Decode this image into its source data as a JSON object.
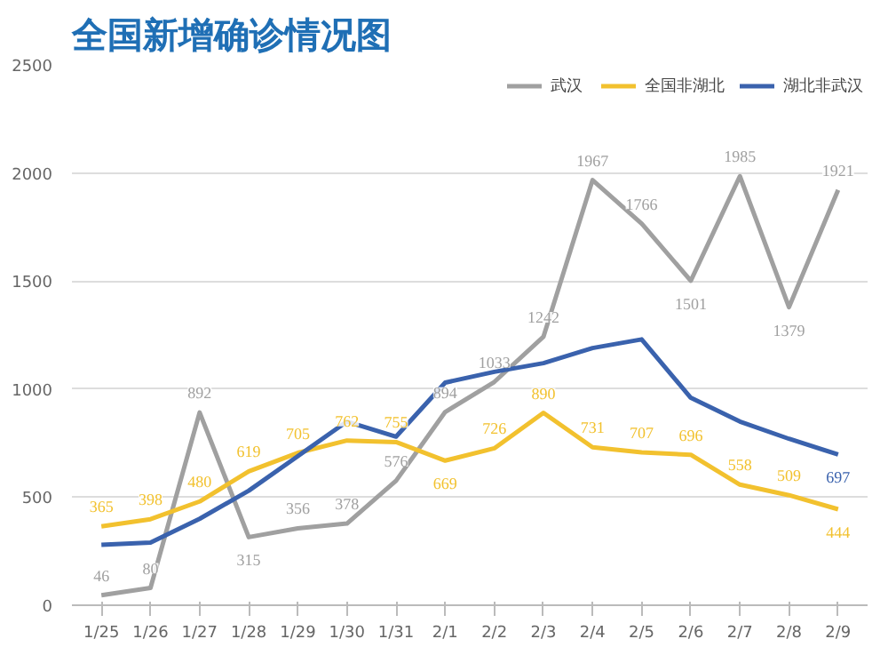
{
  "chart_data": {
    "type": "line",
    "title": "全国新增确诊情况图",
    "categories": [
      "1/25",
      "1/26",
      "1/27",
      "1/28",
      "1/29",
      "1/30",
      "1/31",
      "2/1",
      "2/2",
      "2/3",
      "2/4",
      "2/5",
      "2/6",
      "2/7",
      "2/8",
      "2/9"
    ],
    "series": [
      {
        "name": "武汉",
        "color": "#a0a0a0",
        "values": [
          46,
          80,
          892,
          315,
          356,
          378,
          576,
          894,
          1033,
          1242,
          1967,
          1766,
          1501,
          1985,
          1379,
          1921
        ],
        "value_labels": [
          "46",
          "80",
          "892",
          "315",
          "356",
          "378",
          "576",
          "894",
          "1033",
          "1242",
          "1967",
          "1766",
          "1501",
          "1985",
          "1379",
          "1921"
        ]
      },
      {
        "name": "全国非湖北",
        "color": "#f2c12e",
        "values": [
          365,
          398,
          480,
          619,
          705,
          762,
          755,
          669,
          726,
          890,
          731,
          707,
          696,
          558,
          509,
          444
        ],
        "value_labels": [
          "365",
          "398",
          "480",
          "619",
          "705",
          "762",
          "755",
          "669",
          "726",
          "890",
          "731",
          "707",
          "696",
          "558",
          "509",
          "444"
        ]
      },
      {
        "name": "湖北非武汉",
        "color": "#3a62ad",
        "values": [
          280,
          290,
          400,
          530,
          690,
          850,
          780,
          1030,
          1080,
          1120,
          1190,
          1230,
          960,
          850,
          770,
          697
        ],
        "value_labels": [
          null,
          null,
          null,
          null,
          null,
          null,
          null,
          null,
          null,
          null,
          null,
          null,
          null,
          null,
          null,
          "697"
        ]
      }
    ],
    "ylim": [
      0,
      2500
    ],
    "yticks": [
      0,
      500,
      1000,
      1500,
      2000,
      2500
    ],
    "grid": "y",
    "legend": "top right",
    "marker": "none",
    "line_style": "solid"
  }
}
